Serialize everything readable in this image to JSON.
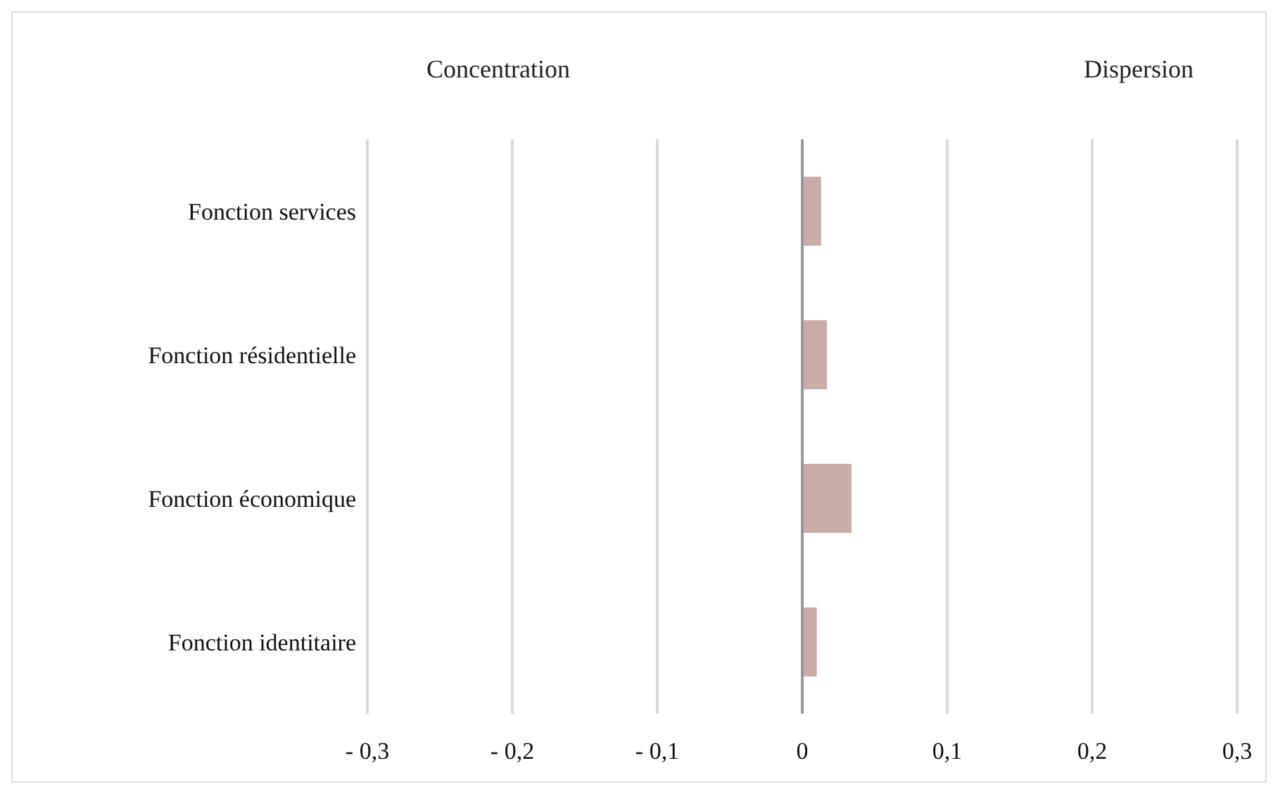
{
  "chart_data": {
    "type": "bar",
    "orientation": "horizontal",
    "categories": [
      "Fonction services",
      "Fonction résidentielle",
      "Fonction économique",
      "Fonction identitaire"
    ],
    "values": [
      0.013,
      0.017,
      0.034,
      0.01
    ],
    "color": "#c9aca7",
    "xlim": [
      -0.3,
      0.3
    ],
    "xticks": [
      {
        "value": -0.3,
        "label": "- 0,3"
      },
      {
        "value": -0.2,
        "label": "- 0,2"
      },
      {
        "value": -0.1,
        "label": "- 0,1"
      },
      {
        "value": 0,
        "label": "0"
      },
      {
        "value": 0.1,
        "label": "0,1"
      },
      {
        "value": 0.2,
        "label": "0,2"
      },
      {
        "value": 0.3,
        "label": "0,3"
      }
    ],
    "grid": "x",
    "annotations": [
      "Concentration",
      "Dispersion"
    ]
  }
}
